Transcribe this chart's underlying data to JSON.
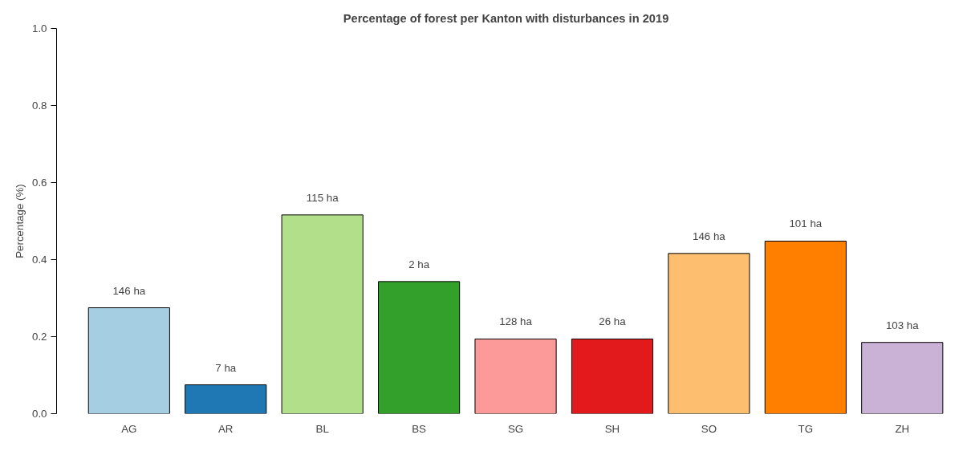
{
  "chart_data": {
    "type": "bar",
    "title": "Percentage of forest per Kanton with disturbances in 2019",
    "ylabel": "Percentage (%)",
    "categories": [
      "AG",
      "AR",
      "BL",
      "BS",
      "SG",
      "SH",
      "SO",
      "TG",
      "ZH"
    ],
    "values": [
      0.275,
      0.075,
      0.516,
      0.343,
      0.194,
      0.194,
      0.416,
      0.448,
      0.185
    ],
    "colors": [
      "#a6cee3",
      "#1f78b4",
      "#b2df8a",
      "#33a02c",
      "#fb9a99",
      "#e31a1c",
      "#fdbf6f",
      "#ff7f00",
      "#cab2d6"
    ],
    "annotations": [
      {
        "text": "146 ha",
        "x": "AG",
        "y": 0.275
      },
      {
        "text": "7 ha",
        "x": "AR",
        "y": 0.075
      },
      {
        "text": "115 ha",
        "x": "BL",
        "y": 0.516
      },
      {
        "text": "2 ha",
        "x": "BS",
        "y": 0.343
      },
      {
        "text": "128 ha",
        "x": "SG",
        "y": 0.194
      },
      {
        "text": "26 ha",
        "x": "SH",
        "y": 0.194
      },
      {
        "text": "146 ha",
        "x": "SO",
        "y": 0.416
      },
      {
        "text": "101 ha",
        "x": "TG",
        "y": 0.448
      },
      {
        "text": "103 ha",
        "x": "ZH",
        "y": 0.185
      }
    ],
    "ylim": [
      0,
      1
    ],
    "yticks": [
      {
        "value": 0,
        "label": "0.0"
      },
      {
        "value": 0.2,
        "label": "0.2"
      },
      {
        "value": 0.4,
        "label": "0.4"
      },
      {
        "value": 0.6,
        "label": "0.6"
      },
      {
        "value": 0.8,
        "label": "0.8"
      },
      {
        "value": 1,
        "label": "1.0"
      }
    ],
    "grid": false
  }
}
